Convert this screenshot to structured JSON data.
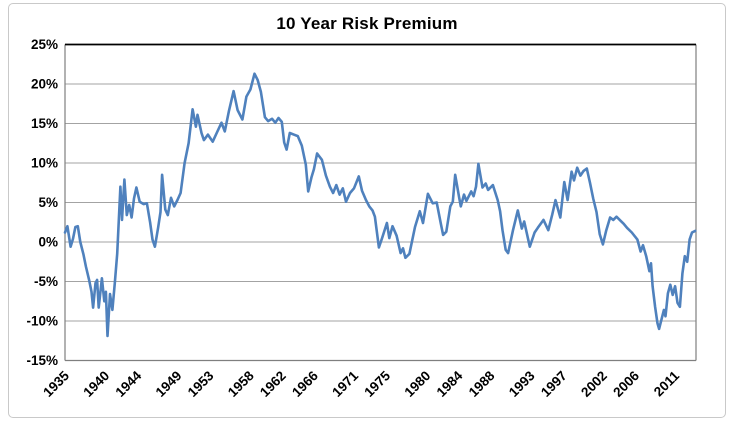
{
  "window": {
    "background": "#ffffff",
    "frame_border_color": "#c9c9c9"
  },
  "chart_data": {
    "type": "line",
    "title": "10 Year Risk Premium",
    "xlabel": "",
    "ylabel": "",
    "grid": true,
    "legend": "none",
    "ylim": [
      -15,
      25
    ],
    "xlim": [
      1935,
      2013.6
    ],
    "gridline_color": "#a3a3a3",
    "axis_color": "#7f7f7f",
    "plot_top_border_color": "#000000",
    "y_ticks": [
      {
        "value": 25,
        "label": "25%"
      },
      {
        "value": 20,
        "label": "20%"
      },
      {
        "value": 15,
        "label": "15%"
      },
      {
        "value": 10,
        "label": "10%"
      },
      {
        "value": 5,
        "label": "5%"
      },
      {
        "value": 0,
        "label": "0%"
      },
      {
        "value": -5,
        "label": "-5%"
      },
      {
        "value": -10,
        "label": "-10%"
      },
      {
        "value": -15,
        "label": "-15%"
      }
    ],
    "x_ticks": [
      {
        "label": "1935",
        "year": 1935
      },
      {
        "label": "1940",
        "year": 1940
      },
      {
        "label": "1944",
        "year": 1944
      },
      {
        "label": "1949",
        "year": 1949
      },
      {
        "label": "1953",
        "year": 1953
      },
      {
        "label": "1958",
        "year": 1958
      },
      {
        "label": "1962",
        "year": 1962
      },
      {
        "label": "1966",
        "year": 1966
      },
      {
        "label": "1971",
        "year": 1971
      },
      {
        "label": "1975",
        "year": 1975
      },
      {
        "label": "1980",
        "year": 1980
      },
      {
        "label": "1984",
        "year": 1984
      },
      {
        "label": "1988",
        "year": 1988
      },
      {
        "label": "1993",
        "year": 1993
      },
      {
        "label": "1997",
        "year": 1997
      },
      {
        "label": "2002",
        "year": 2002
      },
      {
        "label": "2006",
        "year": 2006
      },
      {
        "label": "2011",
        "year": 2011
      }
    ],
    "series": [
      {
        "name": "10 Year Risk Premium",
        "color": "#4f81bd",
        "line_width": 2.6,
        "points": [
          [
            1935.0,
            1.2
          ],
          [
            1935.3,
            2.0
          ],
          [
            1935.7,
            -0.6
          ],
          [
            1936.0,
            0.4
          ],
          [
            1936.3,
            1.9
          ],
          [
            1936.6,
            2.0
          ],
          [
            1936.9,
            0.0
          ],
          [
            1937.3,
            -1.6
          ],
          [
            1937.6,
            -3.1
          ],
          [
            1938.0,
            -4.8
          ],
          [
            1938.3,
            -6.3
          ],
          [
            1938.5,
            -8.3
          ],
          [
            1938.8,
            -5.2
          ],
          [
            1939.0,
            -4.8
          ],
          [
            1939.2,
            -8.3
          ],
          [
            1939.6,
            -4.6
          ],
          [
            1939.9,
            -7.5
          ],
          [
            1940.1,
            -6.3
          ],
          [
            1940.3,
            -11.9
          ],
          [
            1940.6,
            -6.6
          ],
          [
            1940.9,
            -8.6
          ],
          [
            1941.2,
            -5.2
          ],
          [
            1941.5,
            -1.5
          ],
          [
            1941.9,
            7.0
          ],
          [
            1942.1,
            2.8
          ],
          [
            1942.4,
            7.9
          ],
          [
            1942.7,
            3.4
          ],
          [
            1943.0,
            4.7
          ],
          [
            1943.3,
            3.1
          ],
          [
            1943.6,
            5.5
          ],
          [
            1943.9,
            6.9
          ],
          [
            1944.3,
            5.1
          ],
          [
            1944.8,
            4.8
          ],
          [
            1945.2,
            4.9
          ],
          [
            1945.6,
            2.5
          ],
          [
            1945.9,
            0.3
          ],
          [
            1946.2,
            -0.6
          ],
          [
            1946.6,
            1.8
          ],
          [
            1946.9,
            3.8
          ],
          [
            1947.1,
            8.5
          ],
          [
            1947.5,
            4.1
          ],
          [
            1947.8,
            3.4
          ],
          [
            1948.2,
            5.6
          ],
          [
            1948.6,
            4.5
          ],
          [
            1949.0,
            5.3
          ],
          [
            1949.4,
            6.2
          ],
          [
            1949.9,
            10.0
          ],
          [
            1950.4,
            12.5
          ],
          [
            1950.9,
            16.8
          ],
          [
            1951.3,
            14.6
          ],
          [
            1951.5,
            16.1
          ],
          [
            1952.0,
            13.8
          ],
          [
            1952.3,
            12.9
          ],
          [
            1952.8,
            13.6
          ],
          [
            1953.4,
            12.7
          ],
          [
            1953.9,
            13.8
          ],
          [
            1954.5,
            15.1
          ],
          [
            1954.9,
            14.0
          ],
          [
            1955.4,
            16.5
          ],
          [
            1956.0,
            19.1
          ],
          [
            1956.5,
            16.7
          ],
          [
            1957.1,
            15.5
          ],
          [
            1957.6,
            18.4
          ],
          [
            1958.1,
            19.3
          ],
          [
            1958.6,
            21.3
          ],
          [
            1959.0,
            20.5
          ],
          [
            1959.4,
            19.0
          ],
          [
            1959.9,
            15.8
          ],
          [
            1960.3,
            15.3
          ],
          [
            1960.8,
            15.6
          ],
          [
            1961.2,
            15.1
          ],
          [
            1961.6,
            15.7
          ],
          [
            1962.0,
            15.2
          ],
          [
            1962.3,
            12.6
          ],
          [
            1962.6,
            11.7
          ],
          [
            1963.0,
            13.8
          ],
          [
            1963.5,
            13.6
          ],
          [
            1964.0,
            13.4
          ],
          [
            1964.5,
            12.2
          ],
          [
            1965.0,
            9.8
          ],
          [
            1965.3,
            6.4
          ],
          [
            1965.7,
            8.2
          ],
          [
            1966.0,
            9.2
          ],
          [
            1966.4,
            11.2
          ],
          [
            1967.0,
            10.4
          ],
          [
            1967.5,
            8.4
          ],
          [
            1968.0,
            7.0
          ],
          [
            1968.4,
            6.2
          ],
          [
            1968.8,
            7.2
          ],
          [
            1969.2,
            6.0
          ],
          [
            1969.6,
            6.8
          ],
          [
            1970.0,
            5.1
          ],
          [
            1970.5,
            6.2
          ],
          [
            1971.0,
            6.8
          ],
          [
            1971.6,
            8.3
          ],
          [
            1972.0,
            6.5
          ],
          [
            1972.5,
            5.3
          ],
          [
            1972.9,
            4.5
          ],
          [
            1973.3,
            4.0
          ],
          [
            1973.6,
            3.2
          ],
          [
            1974.1,
            -0.7
          ],
          [
            1974.5,
            0.5
          ],
          [
            1975.1,
            2.4
          ],
          [
            1975.4,
            0.5
          ],
          [
            1975.8,
            2.0
          ],
          [
            1976.3,
            0.8
          ],
          [
            1976.8,
            -1.4
          ],
          [
            1977.1,
            -0.8
          ],
          [
            1977.4,
            -2.0
          ],
          [
            1977.9,
            -1.5
          ],
          [
            1978.6,
            1.9
          ],
          [
            1979.2,
            3.9
          ],
          [
            1979.6,
            2.4
          ],
          [
            1980.2,
            6.1
          ],
          [
            1980.8,
            4.9
          ],
          [
            1981.3,
            5.0
          ],
          [
            1981.8,
            2.4
          ],
          [
            1982.1,
            0.9
          ],
          [
            1982.5,
            1.3
          ],
          [
            1983.0,
            4.5
          ],
          [
            1983.3,
            5.1
          ],
          [
            1983.6,
            8.5
          ],
          [
            1984.1,
            5.6
          ],
          [
            1984.3,
            4.5
          ],
          [
            1984.7,
            6.0
          ],
          [
            1985.0,
            5.2
          ],
          [
            1985.6,
            6.4
          ],
          [
            1985.9,
            5.8
          ],
          [
            1986.2,
            7.0
          ],
          [
            1986.5,
            9.9
          ],
          [
            1987.0,
            6.9
          ],
          [
            1987.4,
            7.4
          ],
          [
            1987.7,
            6.6
          ],
          [
            1988.3,
            7.2
          ],
          [
            1988.9,
            5.3
          ],
          [
            1989.2,
            3.9
          ],
          [
            1989.5,
            1.5
          ],
          [
            1989.9,
            -1.0
          ],
          [
            1990.2,
            -1.4
          ],
          [
            1990.8,
            1.5
          ],
          [
            1991.4,
            4.0
          ],
          [
            1991.9,
            1.7
          ],
          [
            1992.2,
            2.6
          ],
          [
            1992.9,
            -0.6
          ],
          [
            1993.5,
            1.2
          ],
          [
            1993.9,
            1.8
          ],
          [
            1994.6,
            2.8
          ],
          [
            1995.2,
            1.5
          ],
          [
            1995.7,
            3.5
          ],
          [
            1996.1,
            5.3
          ],
          [
            1996.7,
            3.1
          ],
          [
            1997.2,
            7.6
          ],
          [
            1997.6,
            5.3
          ],
          [
            1998.1,
            8.9
          ],
          [
            1998.4,
            7.8
          ],
          [
            1998.8,
            9.4
          ],
          [
            1999.2,
            8.4
          ],
          [
            1999.6,
            9.0
          ],
          [
            2000.0,
            9.3
          ],
          [
            2000.4,
            7.5
          ],
          [
            2000.8,
            5.5
          ],
          [
            2001.2,
            3.8
          ],
          [
            2001.6,
            1.0
          ],
          [
            2002.0,
            -0.3
          ],
          [
            2002.4,
            1.4
          ],
          [
            2002.9,
            3.1
          ],
          [
            2003.3,
            2.8
          ],
          [
            2003.7,
            3.2
          ],
          [
            2004.2,
            2.7
          ],
          [
            2004.6,
            2.3
          ],
          [
            2005.0,
            1.8
          ],
          [
            2005.6,
            1.2
          ],
          [
            2006.3,
            0.3
          ],
          [
            2006.7,
            -1.2
          ],
          [
            2007.0,
            -0.4
          ],
          [
            2007.4,
            -1.8
          ],
          [
            2007.8,
            -3.7
          ],
          [
            2008.0,
            -2.7
          ],
          [
            2008.2,
            -5.6
          ],
          [
            2008.5,
            -8.2
          ],
          [
            2008.8,
            -10.3
          ],
          [
            2009.0,
            -11.0
          ],
          [
            2009.3,
            -9.8
          ],
          [
            2009.6,
            -8.6
          ],
          [
            2009.8,
            -9.4
          ],
          [
            2010.1,
            -6.5
          ],
          [
            2010.4,
            -5.4
          ],
          [
            2010.7,
            -6.7
          ],
          [
            2011.0,
            -5.6
          ],
          [
            2011.3,
            -7.7
          ],
          [
            2011.6,
            -8.2
          ],
          [
            2011.9,
            -4.0
          ],
          [
            2012.2,
            -1.8
          ],
          [
            2012.5,
            -2.5
          ],
          [
            2012.8,
            0.3
          ],
          [
            2013.1,
            1.2
          ],
          [
            2013.5,
            1.4
          ]
        ]
      }
    ]
  }
}
